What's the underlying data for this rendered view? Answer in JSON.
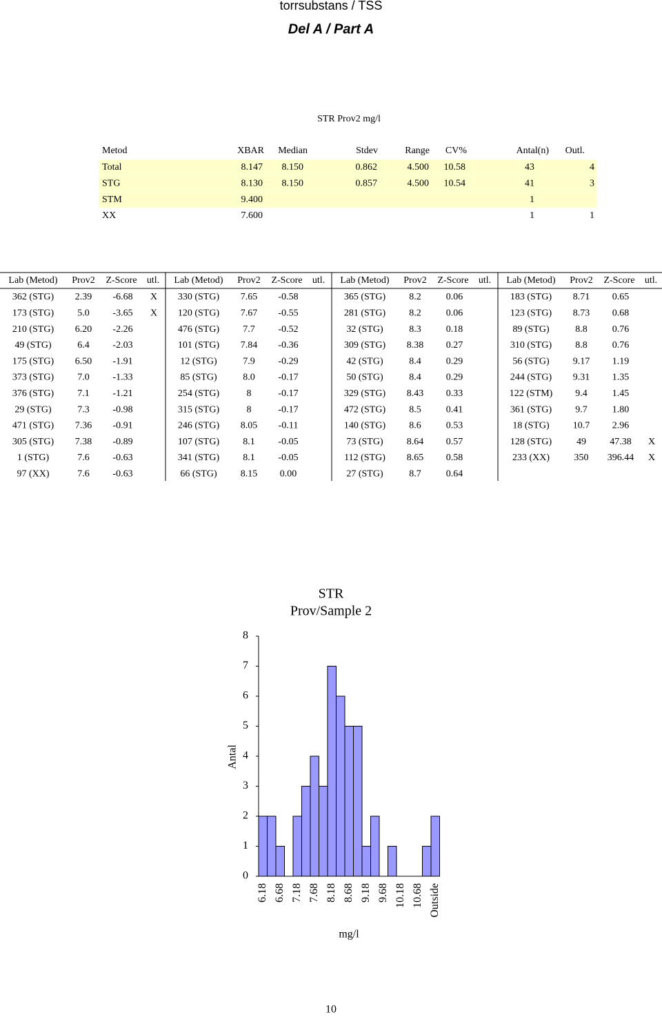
{
  "header": {
    "title": "torrsubstans / TSS",
    "subtitle": "Del A / Part A"
  },
  "summary": {
    "title": "STR Prov2 mg/l",
    "columns": [
      "Metod",
      "XBAR",
      "Median",
      "Stdev",
      "Range",
      "CV%",
      "Antal(n)",
      "Outl."
    ],
    "rows": [
      [
        "Total",
        "8.147",
        "8.150",
        "0.862",
        "4.500",
        "10.58",
        "43",
        "4"
      ],
      [
        "STG",
        "8.130",
        "8.150",
        "0.857",
        "4.500",
        "10.54",
        "41",
        "3"
      ],
      [
        "STM",
        "9.400",
        null,
        null,
        null,
        null,
        "1",
        null
      ],
      [
        "XX",
        "7.600",
        null,
        null,
        null,
        null,
        "1",
        "1"
      ]
    ]
  },
  "results": {
    "columns": [
      "Lab (Metod)",
      "Prov2",
      "Z-Score",
      "utl."
    ],
    "blocks": [
      [
        [
          "362 (STG)",
          "2.39",
          "-6.68",
          "X"
        ],
        [
          "173 (STG)",
          "5.0",
          "-3.65",
          "X"
        ],
        [
          "210 (STG)",
          "6.20",
          "-2.26"
        ],
        [
          "49 (STG)",
          "6.4",
          "-2.03"
        ],
        [
          "175 (STG)",
          "6.50",
          "-1.91"
        ],
        [
          "373 (STG)",
          "7.0",
          "-1.33"
        ],
        [
          "376 (STG)",
          "7.1",
          "-1.21"
        ],
        [
          "29 (STG)",
          "7.3",
          "-0.98"
        ],
        [
          "471 (STG)",
          "7.36",
          "-0.91"
        ],
        [
          "305 (STG)",
          "7.38",
          "-0.89"
        ],
        [
          "1 (STG)",
          "7.6",
          "-0.63"
        ],
        [
          "97 (XX)",
          "7.6",
          "-0.63"
        ]
      ],
      [
        [
          "330 (STG)",
          "7.65",
          "-0.58"
        ],
        [
          "120 (STG)",
          "7.67",
          "-0.55"
        ],
        [
          "476 (STG)",
          "7.7",
          "-0.52"
        ],
        [
          "101 (STG)",
          "7.84",
          "-0.36"
        ],
        [
          "12 (STG)",
          "7.9",
          "-0.29"
        ],
        [
          "85 (STG)",
          "8.0",
          "-0.17"
        ],
        [
          "254 (STG)",
          "8",
          "-0.17"
        ],
        [
          "315 (STG)",
          "8",
          "-0.17"
        ],
        [
          "246 (STG)",
          "8.05",
          "-0.11"
        ],
        [
          "107 (STG)",
          "8.1",
          "-0.05"
        ],
        [
          "341 (STG)",
          "8.1",
          "-0.05"
        ],
        [
          "66 (STG)",
          "8.15",
          "0.00"
        ]
      ],
      [
        [
          "365 (STG)",
          "8.2",
          "0.06"
        ],
        [
          "281 (STG)",
          "8.2",
          "0.06"
        ],
        [
          "32 (STG)",
          "8.3",
          "0.18"
        ],
        [
          "309 (STG)",
          "8.38",
          "0.27"
        ],
        [
          "42 (STG)",
          "8.4",
          "0.29"
        ],
        [
          "50 (STG)",
          "8.4",
          "0.29"
        ],
        [
          "329 (STG)",
          "8.43",
          "0.33"
        ],
        [
          "472 (STG)",
          "8.5",
          "0.41"
        ],
        [
          "140 (STG)",
          "8.6",
          "0.53"
        ],
        [
          "73 (STG)",
          "8.64",
          "0.57"
        ],
        [
          "112 (STG)",
          "8.65",
          "0.58"
        ],
        [
          "27 (STG)",
          "8.7",
          "0.64"
        ]
      ],
      [
        [
          "183 (STG)",
          "8.71",
          "0.65"
        ],
        [
          "123 (STG)",
          "8.73",
          "0.68"
        ],
        [
          "89 (STG)",
          "8.8",
          "0.76"
        ],
        [
          "310 (STG)",
          "8.8",
          "0.76"
        ],
        [
          "56 (STG)",
          "9.17",
          "1.19"
        ],
        [
          "244 (STG)",
          "9.31",
          "1.35"
        ],
        [
          "122 (STM)",
          "9.4",
          "1.45"
        ],
        [
          "361 (STG)",
          "9.7",
          "1.80"
        ],
        [
          "18 (STG)",
          "10.7",
          "2.96"
        ],
        [
          "128 (STG)",
          "49",
          "47.38",
          "X"
        ],
        [
          "233 (XX)",
          "350",
          "396.44",
          "X"
        ]
      ]
    ]
  },
  "chart_data": {
    "type": "bar",
    "title": "STR",
    "subtitle": "Prov/Sample 2",
    "x_label": "mg/l",
    "y_label": "Antal",
    "categories": [
      "6.18",
      null,
      "6.68",
      null,
      "7.18",
      null,
      "7.68",
      null,
      "8.18",
      null,
      "8.68",
      null,
      "9.18",
      null,
      "9.68",
      null,
      "10.18",
      null,
      "10.68",
      null,
      "Outside"
    ],
    "values": [
      2,
      2,
      1,
      0,
      2,
      3,
      4,
      3,
      7,
      6,
      5,
      5,
      1,
      2,
      0,
      1,
      0,
      0,
      0,
      1,
      2
    ],
    "color": "#9999ff",
    "ylim": [
      0,
      8
    ],
    "yticks": [
      0,
      1,
      2,
      3,
      4,
      5,
      6,
      7,
      8
    ],
    "grid": false
  },
  "footer": {
    "page": "10"
  }
}
